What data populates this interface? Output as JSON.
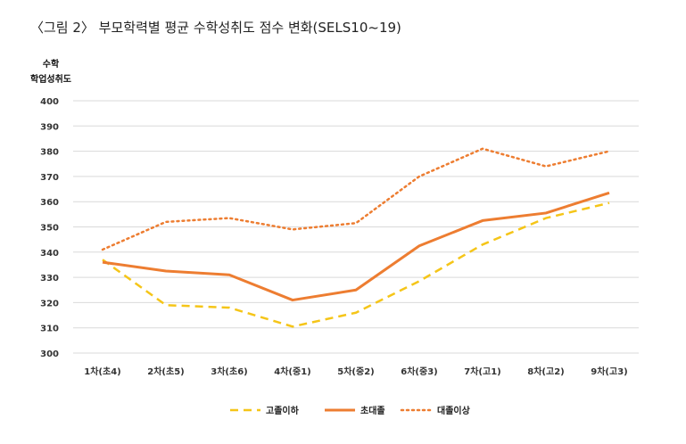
{
  "figure_title": "〈그림 2〉 부모학력별 평균 수학성취도 점수 변화(SELS10~19)",
  "chart_data": {
    "type": "line",
    "title": "〈그림 2〉 부모학력별 평균 수학성취도 점수 변화(SELS10~19)",
    "ylabel_lines": [
      "수학",
      "학업성취도"
    ],
    "xlabel": "",
    "categories": [
      "1차(초4)",
      "2차(초5)",
      "3차(초6)",
      "4차(중1)",
      "5차(중2)",
      "6차(중3)",
      "7차(고1)",
      "8차(고2)",
      "9차(고3)"
    ],
    "ylim": [
      300,
      400
    ],
    "yticks": [
      300,
      310,
      320,
      330,
      340,
      350,
      360,
      370,
      380,
      390,
      400
    ],
    "grid": true,
    "legend_position": "bottom",
    "series": [
      {
        "name": "고졸이하",
        "color": "#F5C518",
        "style": "dashed",
        "values": [
          337,
          319,
          318,
          310.5,
          316,
          328.5,
          343,
          353.5,
          359.5
        ]
      },
      {
        "name": "초대졸",
        "color": "#ED7D31",
        "style": "solid",
        "values": [
          336,
          332.5,
          331,
          321,
          325,
          342.5,
          352.5,
          355.5,
          363.5
        ]
      },
      {
        "name": "대졸이상",
        "color": "#ED7D31",
        "style": "dotted",
        "values": [
          341,
          352,
          353.5,
          349,
          351.5,
          370,
          381,
          374,
          380
        ]
      }
    ]
  }
}
